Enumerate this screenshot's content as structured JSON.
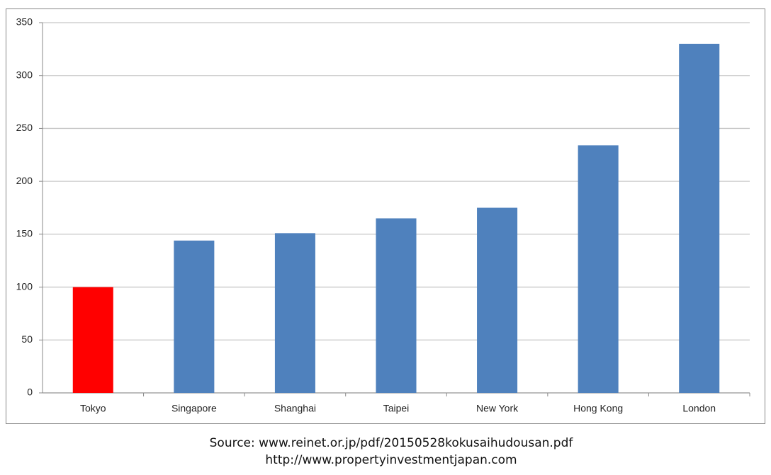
{
  "chart_data": {
    "type": "bar",
    "categories": [
      "Tokyo",
      "Singapore",
      "Shanghai",
      "Taipei",
      "New York",
      "Hong Kong",
      "London"
    ],
    "values": [
      100,
      144,
      151,
      165,
      175,
      234,
      330
    ],
    "colors": [
      "#ff0000",
      "#4f81bd",
      "#4f81bd",
      "#4f81bd",
      "#4f81bd",
      "#4f81bd",
      "#4f81bd"
    ],
    "ylim": [
      0,
      350
    ],
    "yticks": [
      0,
      50,
      100,
      150,
      200,
      250,
      300,
      350
    ],
    "grid": true,
    "source": [
      "Source: www.reinet.or.jp/pdf/20150528kokusaihudousan.pdf",
      "http://www.propertyinvestmentjapan.com"
    ]
  }
}
